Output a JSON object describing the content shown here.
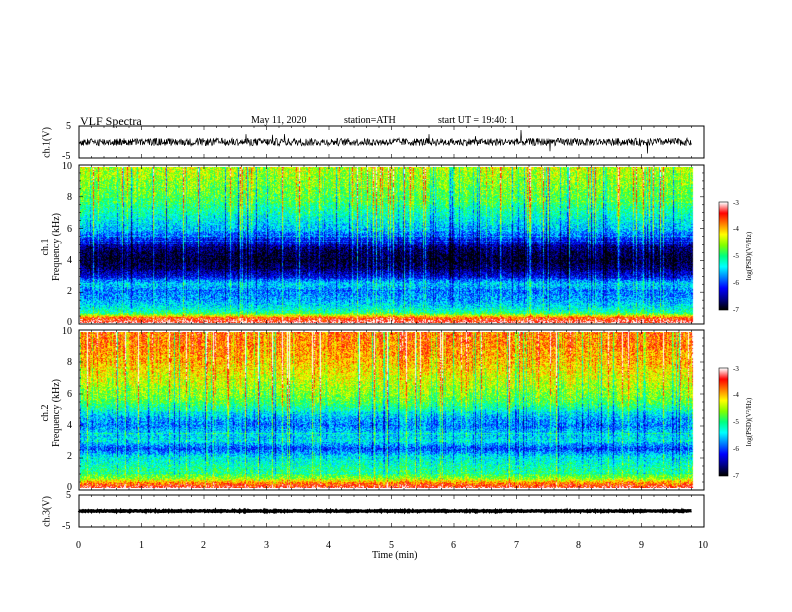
{
  "header": {
    "title": "VLF Spectra",
    "date": "May 11, 2020",
    "station": "station=ATH",
    "start": "start UT = 19:40: 1"
  },
  "chart_data": [
    {
      "type": "line",
      "panel": "ch1-waveform",
      "ylabel": "ch.1(V)",
      "ylim": [
        -5,
        5
      ],
      "yticks": [
        "5",
        "-5"
      ],
      "xlim": [
        0,
        10
      ],
      "x_extent_min": 9.8,
      "baseline_v": 0.0,
      "amplitude_v": 1.2,
      "color": "#000000"
    },
    {
      "type": "heatmap",
      "panel": "ch1-spectrogram",
      "ylabel_line1": "ch.1",
      "ylabel_line2": "Frequency (kHz)",
      "ylim": [
        0,
        10
      ],
      "yticks": [
        "0",
        "2",
        "4",
        "6",
        "8",
        "10"
      ],
      "xlim": [
        0,
        10
      ],
      "x_extent_min": 9.8,
      "colorbar": {
        "label": "log(PSD)(V²/Hz)",
        "range": [
          -7,
          -3
        ],
        "ticks": [
          "-3",
          "-4",
          "-5",
          "-6",
          "-7"
        ]
      },
      "profile_khz_log_psd": [
        [
          0,
          -3.2
        ],
        [
          0.3,
          -3.6
        ],
        [
          0.6,
          -5.0
        ],
        [
          1.0,
          -5.4
        ],
        [
          1.5,
          -5.7
        ],
        [
          2.0,
          -5.8
        ],
        [
          2.5,
          -5.5
        ],
        [
          3.0,
          -6.3
        ],
        [
          3.5,
          -6.7
        ],
        [
          4.0,
          -6.9
        ],
        [
          4.5,
          -6.8
        ],
        [
          5.0,
          -6.5
        ],
        [
          5.5,
          -6.0
        ],
        [
          6.0,
          -5.6
        ],
        [
          7.0,
          -5.2
        ],
        [
          8.0,
          -4.8
        ],
        [
          9.0,
          -4.6
        ],
        [
          10.0,
          -4.4
        ]
      ]
    },
    {
      "type": "heatmap",
      "panel": "ch2-spectrogram",
      "ylabel_line1": "ch.2",
      "ylabel_line2": "Frequency (kHz)",
      "ylim": [
        0,
        10
      ],
      "yticks": [
        "0",
        "2",
        "4",
        "6",
        "8",
        "10"
      ],
      "xlim": [
        0,
        10
      ],
      "x_extent_min": 9.8,
      "colorbar": {
        "label": "log(PSD)(V²/Hz)",
        "range": [
          -7,
          -3
        ],
        "ticks": [
          "-3",
          "-4",
          "-5",
          "-6",
          "-7"
        ]
      },
      "profile_khz_log_psd": [
        [
          0,
          -3.3
        ],
        [
          0.3,
          -3.8
        ],
        [
          0.6,
          -4.6
        ],
        [
          1.0,
          -5.0
        ],
        [
          1.5,
          -5.2
        ],
        [
          2.0,
          -5.4
        ],
        [
          2.5,
          -6.0
        ],
        [
          3.0,
          -5.4
        ],
        [
          3.5,
          -5.5
        ],
        [
          4.0,
          -5.8
        ],
        [
          4.5,
          -5.6
        ],
        [
          5.0,
          -5.2
        ],
        [
          5.5,
          -4.8
        ],
        [
          6.0,
          -4.6
        ],
        [
          7.0,
          -4.3
        ],
        [
          8.0,
          -4.0
        ],
        [
          9.0,
          -3.8
        ],
        [
          10.0,
          -3.7
        ]
      ]
    },
    {
      "type": "line",
      "panel": "ch3-waveform",
      "ylabel": "ch.3(V)",
      "ylim": [
        -5,
        5
      ],
      "yticks": [
        "5",
        "-5"
      ],
      "xlim": [
        0,
        10
      ],
      "x_extent_min": 9.8,
      "baseline_v": 0.0,
      "amplitude_v": 0.15,
      "xlabel": "Time (min)",
      "xticks": [
        "0",
        "1",
        "2",
        "3",
        "4",
        "5",
        "6",
        "7",
        "8",
        "9",
        "10"
      ],
      "color": "#000000"
    }
  ],
  "colormap": [
    "#000000",
    "#00008b",
    "#0000ff",
    "#0080ff",
    "#00ffff",
    "#00ff80",
    "#80ff00",
    "#ffff00",
    "#ff8000",
    "#ff0000",
    "#ffffff"
  ]
}
